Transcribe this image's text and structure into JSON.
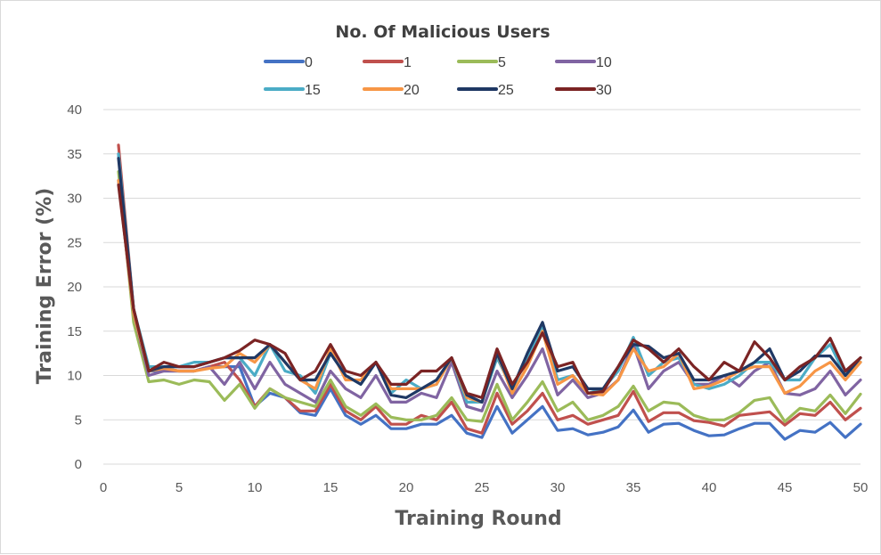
{
  "chart_data": {
    "type": "line",
    "title": "No. Of Malicious Users",
    "xlabel": "Training Round",
    "ylabel": "Training Error (%)",
    "xlim": [
      0,
      50
    ],
    "ylim": [
      0,
      40
    ],
    "x_ticks": [
      0,
      5,
      10,
      15,
      20,
      25,
      30,
      35,
      40,
      45,
      50
    ],
    "y_ticks": [
      0,
      5,
      10,
      15,
      20,
      25,
      30,
      35,
      40
    ],
    "grid": "horizontal",
    "legend_position": "top",
    "x": [
      1,
      2,
      3,
      4,
      5,
      6,
      7,
      8,
      9,
      10,
      11,
      12,
      13,
      14,
      15,
      16,
      17,
      18,
      19,
      20,
      21,
      22,
      23,
      24,
      25,
      26,
      27,
      28,
      29,
      30,
      31,
      32,
      33,
      34,
      35,
      36,
      37,
      38,
      39,
      40,
      41,
      42,
      43,
      44,
      45,
      46,
      47,
      48,
      49,
      50
    ],
    "series": [
      {
        "name": "0",
        "color": "#4472c4",
        "values": [
          35.0,
          17.0,
          10.5,
          10.5,
          10.5,
          10.5,
          11.0,
          11.0,
          11.0,
          6.5,
          8.0,
          7.5,
          5.8,
          5.5,
          8.5,
          5.5,
          4.5,
          5.5,
          4.0,
          4.0,
          4.5,
          4.5,
          5.5,
          3.5,
          3.0,
          6.5,
          3.5,
          5.0,
          6.5,
          3.8,
          4.0,
          3.3,
          3.6,
          4.2,
          6.1,
          3.6,
          4.5,
          4.6,
          3.8,
          3.2,
          3.3,
          4.0,
          4.6,
          4.6,
          2.8,
          3.8,
          3.6,
          4.7,
          3.0,
          4.5
        ]
      },
      {
        "name": "1",
        "color": "#c0504d",
        "values": [
          36.0,
          17.5,
          10.5,
          10.8,
          10.5,
          10.5,
          11.0,
          11.5,
          9.5,
          6.5,
          8.5,
          7.5,
          6.0,
          6.0,
          9.0,
          6.0,
          5.0,
          6.5,
          4.5,
          4.5,
          5.5,
          5.0,
          7.0,
          4.0,
          3.5,
          8.0,
          4.5,
          6.0,
          8.0,
          5.0,
          5.5,
          4.5,
          5.0,
          5.5,
          8.2,
          4.8,
          5.8,
          5.8,
          4.9,
          4.7,
          4.3,
          5.5,
          5.7,
          5.9,
          4.4,
          5.7,
          5.5,
          7.0,
          5.0,
          6.3
        ]
      },
      {
        "name": "5",
        "color": "#9bbb59",
        "values": [
          33.0,
          16.0,
          9.3,
          9.5,
          9.0,
          9.5,
          9.3,
          7.2,
          9.0,
          6.3,
          8.5,
          7.5,
          7.0,
          6.5,
          9.5,
          6.5,
          5.5,
          6.8,
          5.3,
          5.0,
          5.0,
          5.5,
          7.5,
          5.0,
          4.8,
          9.0,
          5.0,
          7.0,
          9.3,
          6.0,
          7.0,
          5.0,
          5.5,
          6.5,
          8.8,
          6.0,
          7.0,
          6.8,
          5.5,
          5.0,
          5.0,
          5.8,
          7.2,
          7.5,
          4.8,
          6.3,
          6.0,
          7.8,
          5.7,
          7.9
        ]
      },
      {
        "name": "10",
        "color": "#8064a2",
        "values": [
          32.0,
          17.0,
          10.0,
          10.5,
          10.5,
          10.5,
          11.0,
          9.0,
          11.5,
          8.5,
          11.5,
          9.0,
          8.0,
          7.0,
          10.5,
          8.5,
          7.5,
          10.0,
          7.0,
          7.0,
          8.0,
          7.5,
          11.5,
          6.5,
          6.0,
          10.5,
          7.5,
          10.0,
          13.0,
          7.8,
          9.5,
          7.5,
          8.0,
          9.5,
          13.5,
          8.5,
          10.5,
          11.5,
          9.0,
          9.0,
          10.0,
          8.8,
          10.5,
          11.5,
          8.0,
          7.8,
          8.5,
          10.5,
          7.8,
          9.5
        ]
      },
      {
        "name": "15",
        "color": "#4bacc6",
        "values": [
          35.0,
          17.5,
          11.0,
          11.0,
          11.0,
          11.5,
          11.5,
          12.0,
          12.0,
          10.0,
          13.5,
          10.5,
          10.0,
          8.0,
          12.5,
          10.0,
          9.0,
          11.5,
          8.0,
          9.5,
          8.5,
          9.0,
          12.0,
          7.0,
          7.0,
          12.0,
          8.5,
          12.0,
          15.5,
          9.5,
          10.0,
          8.0,
          8.5,
          10.5,
          14.3,
          10.0,
          11.5,
          12.0,
          9.0,
          8.5,
          9.0,
          10.0,
          11.5,
          11.5,
          9.5,
          9.5,
          12.0,
          13.5,
          10.0,
          11.5
        ]
      },
      {
        "name": "20",
        "color": "#f79646",
        "values": [
          32.0,
          17.0,
          10.5,
          10.8,
          10.5,
          10.5,
          10.8,
          11.0,
          12.5,
          11.5,
          13.5,
          11.5,
          9.5,
          8.5,
          13.0,
          9.5,
          9.5,
          11.5,
          8.5,
          8.5,
          8.5,
          9.0,
          12.0,
          7.5,
          7.0,
          12.5,
          8.0,
          11.0,
          15.0,
          9.0,
          10.0,
          8.0,
          7.8,
          9.5,
          13.0,
          10.5,
          11.0,
          12.5,
          8.5,
          8.8,
          9.5,
          10.5,
          11.0,
          11.0,
          8.0,
          8.8,
          10.5,
          11.5,
          9.5,
          11.5
        ]
      },
      {
        "name": "25",
        "color": "#1f3864",
        "values": [
          34.5,
          17.5,
          10.5,
          11.0,
          11.0,
          11.0,
          11.5,
          12.0,
          12.0,
          12.0,
          13.5,
          11.5,
          9.5,
          9.5,
          12.5,
          10.0,
          9.0,
          11.5,
          7.8,
          7.5,
          8.5,
          9.5,
          12.0,
          7.8,
          7.0,
          12.5,
          8.5,
          12.5,
          16.0,
          10.5,
          11.0,
          8.5,
          8.5,
          11.0,
          13.5,
          13.3,
          12.0,
          12.5,
          9.5,
          9.5,
          10.0,
          10.5,
          11.5,
          13.0,
          9.5,
          10.5,
          12.2,
          12.2,
          10.0,
          12.0
        ]
      },
      {
        "name": "30",
        "color": "#7b2424",
        "values": [
          31.5,
          17.5,
          10.5,
          11.5,
          11.0,
          11.0,
          11.5,
          12.0,
          12.8,
          14.0,
          13.5,
          12.5,
          9.5,
          10.5,
          13.5,
          10.5,
          10.0,
          11.5,
          9.0,
          9.0,
          10.5,
          10.5,
          12.0,
          8.0,
          7.5,
          13.0,
          9.0,
          11.5,
          14.8,
          11.0,
          11.5,
          8.0,
          8.2,
          11.0,
          14.0,
          13.0,
          11.5,
          13.0,
          11.0,
          9.5,
          11.5,
          10.5,
          13.8,
          12.0,
          9.5,
          11.0,
          12.0,
          14.2,
          10.5,
          12.0
        ]
      }
    ]
  }
}
